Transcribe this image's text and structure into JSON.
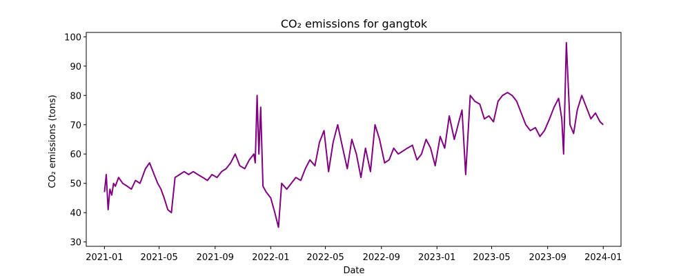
{
  "chart_data": {
    "type": "line",
    "title": "CO₂ emissions for gangtok",
    "xlabel": "Date",
    "ylabel": "CO₂ emissions (tons)",
    "xlim": [
      "2020-11-22",
      "2024-02-09"
    ],
    "ylim": [
      28.5,
      101.5
    ],
    "xticks": [
      "2021-01",
      "2021-05",
      "2021-09",
      "2022-01",
      "2022-05",
      "2022-09",
      "2023-01",
      "2023-05",
      "2023-09",
      "2024-01"
    ],
    "yticks": [
      30,
      40,
      50,
      60,
      70,
      80,
      90,
      100
    ],
    "grid": false,
    "legend": null,
    "series": [
      {
        "color": "#800080",
        "x": [
          "2021-01-01",
          "2021-01-05",
          "2021-01-09",
          "2021-01-13",
          "2021-01-17",
          "2021-01-21",
          "2021-01-25",
          "2021-02-01",
          "2021-02-10",
          "2021-02-20",
          "2021-03-01",
          "2021-03-10",
          "2021-03-20",
          "2021-04-01",
          "2021-04-10",
          "2021-04-20",
          "2021-04-28",
          "2021-05-05",
          "2021-05-12",
          "2021-05-20",
          "2021-05-28",
          "2021-06-05",
          "2021-06-15",
          "2021-06-25",
          "2021-07-05",
          "2021-07-15",
          "2021-07-25",
          "2021-08-05",
          "2021-08-15",
          "2021-08-25",
          "2021-09-05",
          "2021-09-15",
          "2021-09-25",
          "2021-10-05",
          "2021-10-15",
          "2021-10-25",
          "2021-11-05",
          "2021-11-15",
          "2021-11-25",
          "2021-11-28",
          "2021-12-02",
          "2021-12-06",
          "2021-12-10",
          "2021-12-15",
          "2021-12-22",
          "2022-01-01",
          "2022-01-10",
          "2022-01-18",
          "2022-01-25",
          "2022-02-05",
          "2022-02-15",
          "2022-02-25",
          "2022-03-08",
          "2022-03-18",
          "2022-03-28",
          "2022-04-08",
          "2022-04-18",
          "2022-04-28",
          "2022-05-08",
          "2022-05-18",
          "2022-05-28",
          "2022-06-08",
          "2022-06-18",
          "2022-06-28",
          "2022-07-08",
          "2022-07-18",
          "2022-07-28",
          "2022-08-08",
          "2022-08-18",
          "2022-08-28",
          "2022-09-08",
          "2022-09-18",
          "2022-09-28",
          "2022-10-08",
          "2022-10-18",
          "2022-10-28",
          "2022-11-08",
          "2022-11-18",
          "2022-11-28",
          "2022-12-08",
          "2022-12-18",
          "2022-12-28",
          "2023-01-08",
          "2023-01-18",
          "2023-01-28",
          "2023-02-08",
          "2023-02-18",
          "2023-02-25",
          "2023-03-05",
          "2023-03-15",
          "2023-03-25",
          "2023-04-05",
          "2023-04-15",
          "2023-04-25",
          "2023-05-05",
          "2023-05-15",
          "2023-05-25",
          "2023-06-05",
          "2023-06-15",
          "2023-06-25",
          "2023-07-05",
          "2023-07-15",
          "2023-07-25",
          "2023-08-05",
          "2023-08-15",
          "2023-08-25",
          "2023-09-05",
          "2023-09-15",
          "2023-09-25",
          "2023-10-02",
          "2023-10-06",
          "2023-10-12",
          "2023-10-20",
          "2023-10-28",
          "2023-11-05",
          "2023-11-15",
          "2023-11-25",
          "2023-12-05",
          "2023-12-15",
          "2023-12-25",
          "2024-01-01"
        ],
        "y": [
          47,
          53,
          41,
          48,
          46,
          50,
          49,
          52,
          50,
          49,
          48,
          51,
          50,
          55,
          57,
          53,
          50,
          48,
          45,
          41,
          40,
          52,
          53,
          54,
          53,
          54,
          53,
          52,
          51,
          53,
          52,
          54,
          55,
          57,
          60,
          56,
          55,
          58,
          60,
          57,
          80,
          60,
          76,
          49,
          47,
          45,
          40,
          35,
          50,
          48,
          50,
          52,
          51,
          55,
          58,
          56,
          64,
          68,
          54,
          64,
          70,
          62,
          55,
          65,
          60,
          52,
          62,
          54,
          70,
          65,
          57,
          58,
          62,
          60,
          61,
          62,
          63,
          58,
          60,
          65,
          62,
          56,
          66,
          62,
          73,
          65,
          71,
          75,
          53,
          80,
          78,
          77,
          72,
          73,
          71,
          78,
          80,
          81,
          80,
          78,
          74,
          70,
          68,
          69,
          66,
          68,
          72,
          76,
          79,
          72,
          60,
          98,
          70,
          67,
          75,
          80,
          76,
          72,
          74,
          71,
          70
        ]
      }
    ]
  }
}
